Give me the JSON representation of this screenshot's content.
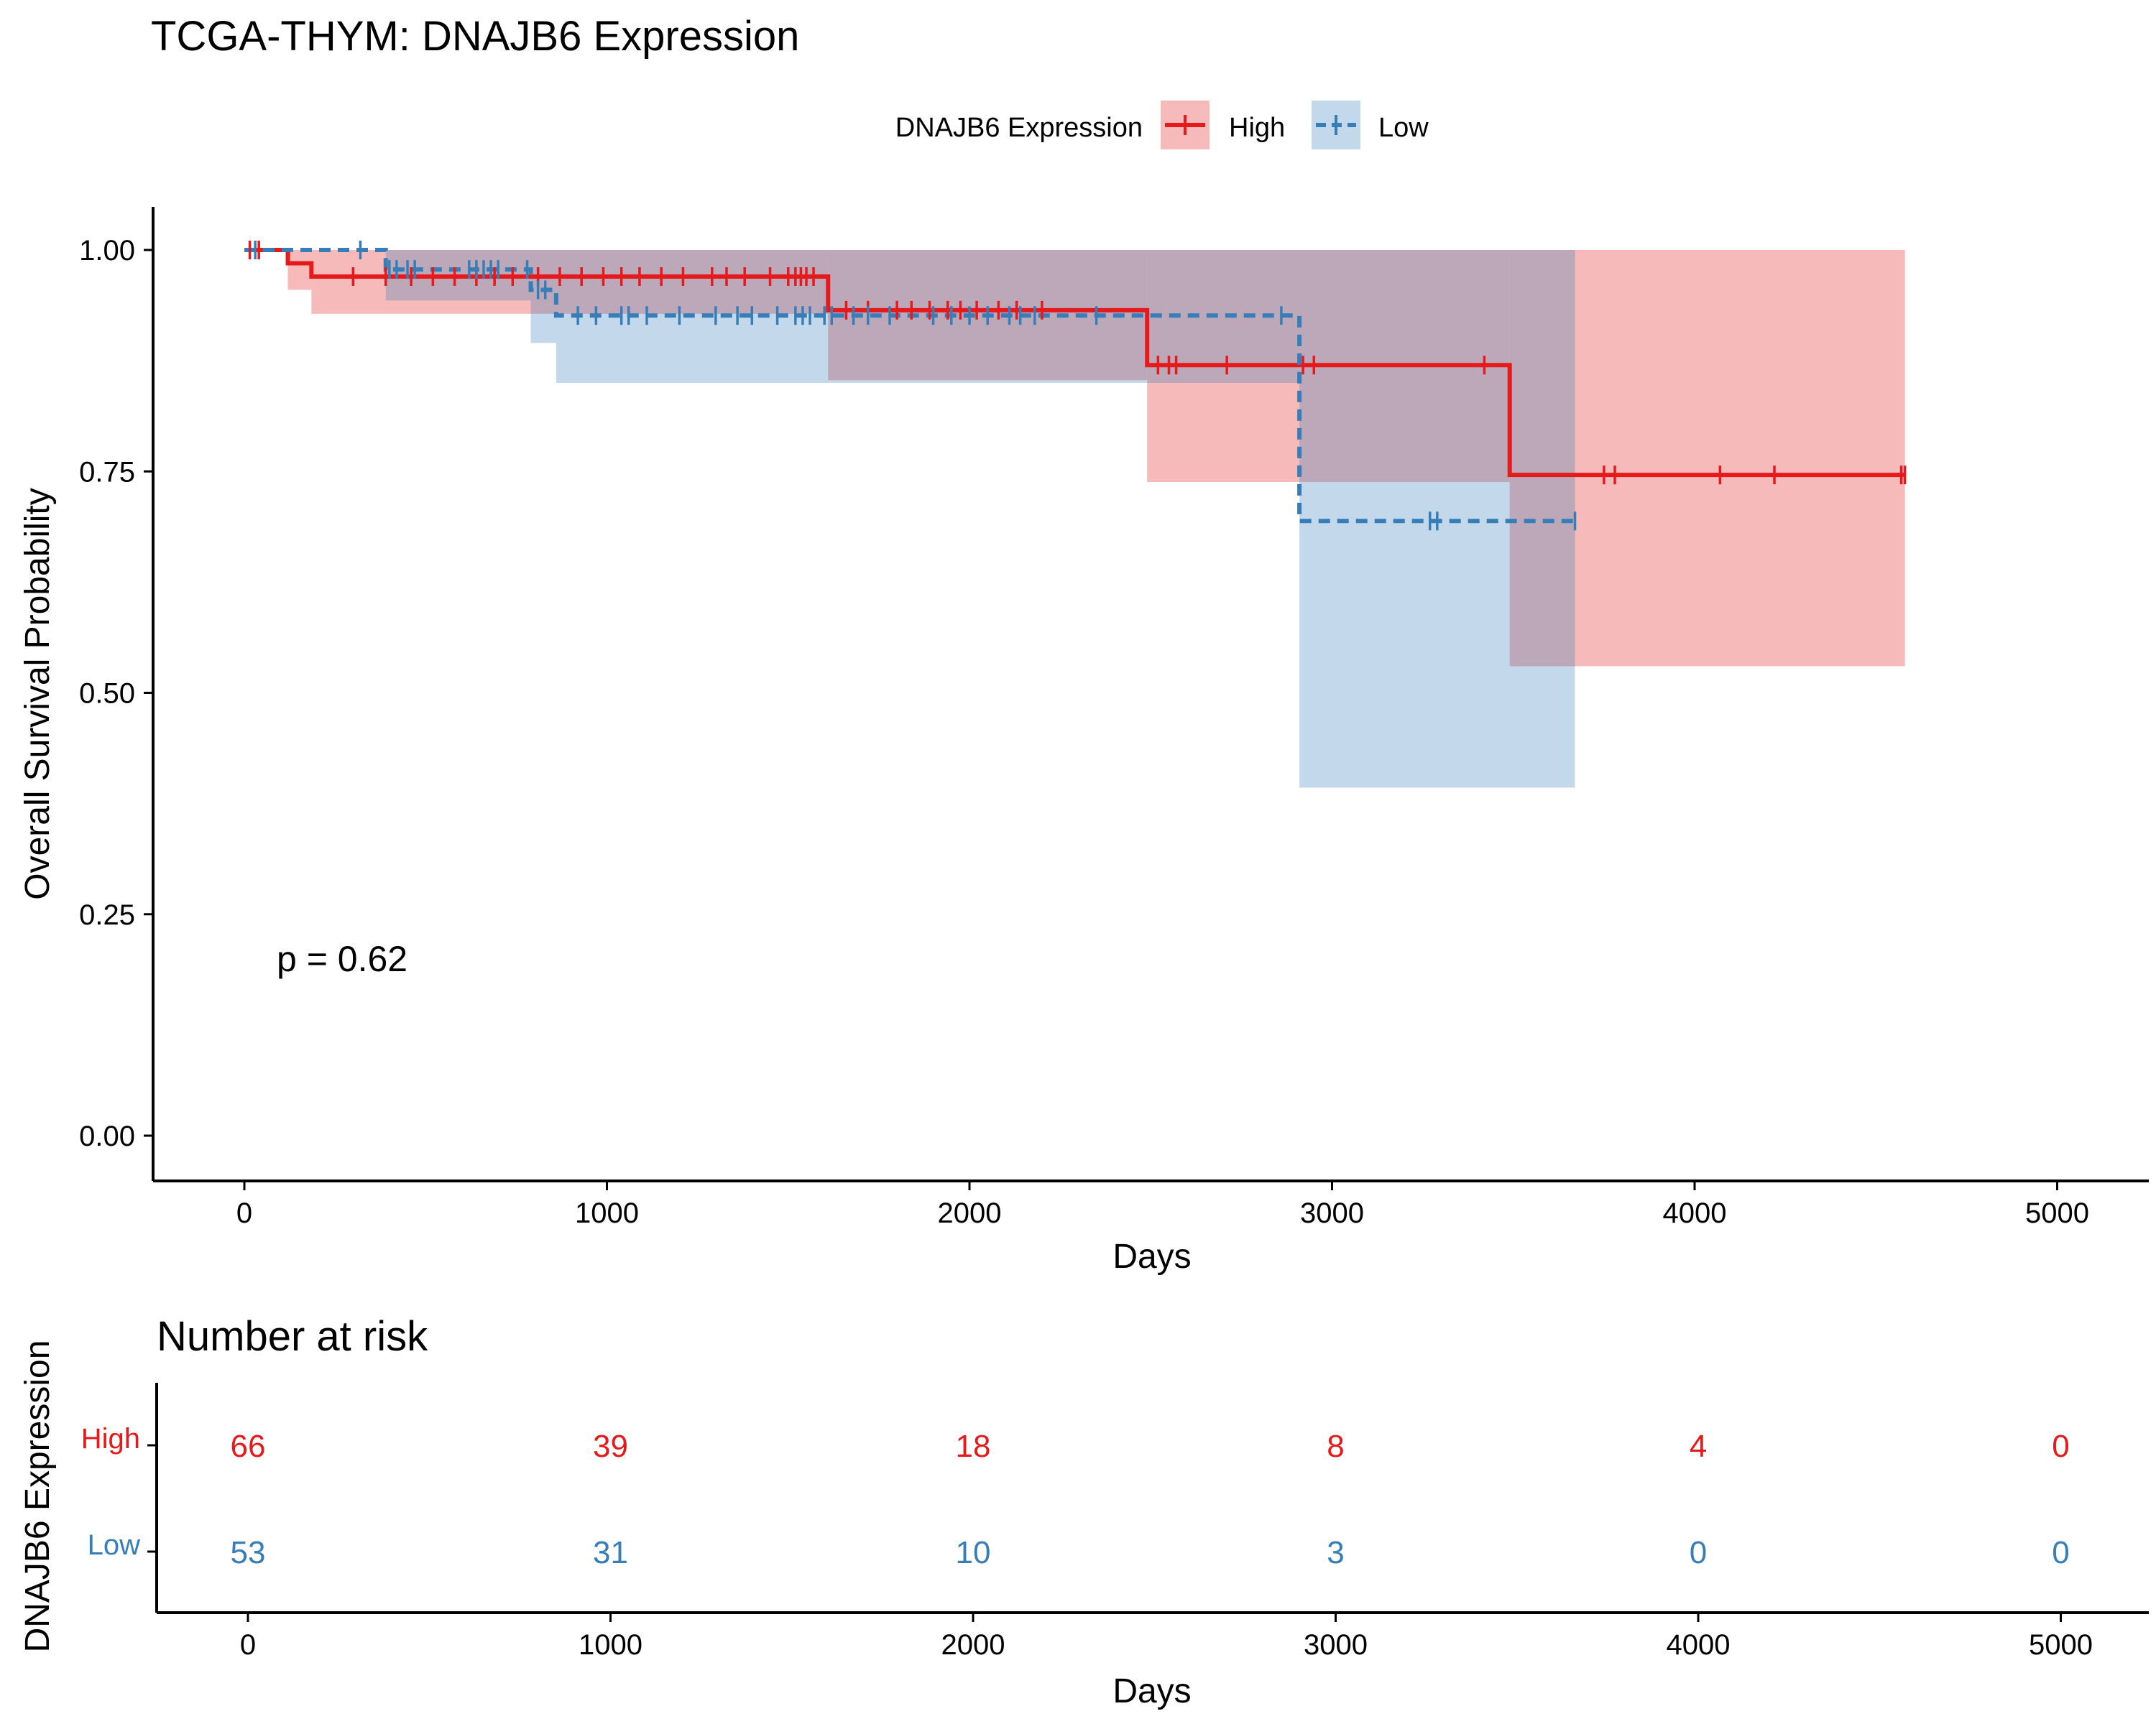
{
  "chart_data": {
    "type": "line",
    "title": "TCGA-THYM: DNAJB6 Expression",
    "legend": {
      "title": "DNAJB6 Expression",
      "placement": "top",
      "entries": [
        "High",
        "Low"
      ]
    },
    "xlabel": "Days",
    "ylabel": "Overall Survival Probability",
    "xlim": [
      -250,
      5250
    ],
    "ylim": [
      -0.05,
      1.05
    ],
    "xticks": [
      0,
      1000,
      2000,
      3000,
      4000,
      5000
    ],
    "yticks": [
      0.0,
      0.25,
      0.5,
      0.75,
      1.0
    ],
    "xtick_labels": [
      "0",
      "1000",
      "2000",
      "3000",
      "4000",
      "5000"
    ],
    "ytick_labels": [
      "0.00",
      "0.25",
      "0.50",
      "0.75",
      "1.00"
    ],
    "grid": false,
    "annotation": "p = 0.62",
    "colors": {
      "High": "#E41A1C",
      "Low": "#377EB8",
      "overlap": "#B8A6B4"
    },
    "series": [
      {
        "name": "High",
        "line": "solid",
        "steps": [
          [
            0,
            1.0
          ],
          [
            120,
            0.985
          ],
          [
            185,
            0.97
          ],
          [
            1610,
            0.932
          ],
          [
            2490,
            0.87
          ],
          [
            3490,
            0.746
          ],
          [
            4580,
            0.746
          ]
        ],
        "ci": [
          [
            0,
            1.0,
            1.0
          ],
          [
            120,
            0.955,
            1.0
          ],
          [
            185,
            0.928,
            1.0
          ],
          [
            1610,
            0.853,
            1.0
          ],
          [
            2490,
            0.738,
            1.0
          ],
          [
            3490,
            0.53,
            1.0
          ],
          [
            4580,
            0.53,
            1.0
          ]
        ],
        "censor": [
          15,
          40,
          300,
          390,
          460,
          520,
          580,
          640,
          690,
          740,
          810,
          870,
          930,
          990,
          1040,
          1090,
          1150,
          1210,
          1290,
          1330,
          1380,
          1450,
          1500,
          1520,
          1535,
          1550,
          1570,
          1660,
          1720,
          1800,
          1840,
          1890,
          1940,
          1975,
          2020,
          2080,
          2130,
          2200,
          2520,
          2550,
          2570,
          2710,
          2920,
          2950,
          3420,
          3750,
          3780,
          4070,
          4220,
          4570,
          4580
        ]
      },
      {
        "name": "Low",
        "line": "dashed",
        "steps": [
          [
            0,
            1.0
          ],
          [
            390,
            0.978
          ],
          [
            790,
            0.955
          ],
          [
            860,
            0.926
          ],
          [
            2910,
            0.694
          ],
          [
            3670,
            0.694
          ]
        ],
        "ci": [
          [
            0,
            1.0,
            1.0
          ],
          [
            390,
            0.943,
            1.0
          ],
          [
            790,
            0.895,
            1.0
          ],
          [
            860,
            0.85,
            1.0
          ],
          [
            2910,
            0.393,
            1.0
          ],
          [
            3670,
            0.393,
            1.0
          ]
        ],
        "censor": [
          30,
          320,
          400,
          420,
          450,
          470,
          620,
          640,
          660,
          680,
          700,
          780,
          810,
          830,
          920,
          970,
          1040,
          1060,
          1110,
          1200,
          1300,
          1360,
          1400,
          1470,
          1520,
          1540,
          1560,
          1600,
          1620,
          1680,
          1720,
          1780,
          1900,
          1950,
          2000,
          2050,
          2110,
          2140,
          2180,
          2350,
          2860,
          3270,
          3290,
          3670
        ]
      }
    ]
  },
  "risk_table": {
    "title": "Number at risk",
    "ylabel": "DNAJB6 Expression",
    "xlabel": "Days",
    "times": [
      0,
      1000,
      2000,
      3000,
      4000,
      5000
    ],
    "xtick_labels": [
      "0",
      "1000",
      "2000",
      "3000",
      "4000",
      "5000"
    ],
    "rows": [
      {
        "name": "High",
        "values": [
          66,
          39,
          18,
          8,
          4,
          0
        ]
      },
      {
        "name": "Low",
        "values": [
          53,
          31,
          10,
          3,
          0,
          0
        ]
      }
    ]
  }
}
